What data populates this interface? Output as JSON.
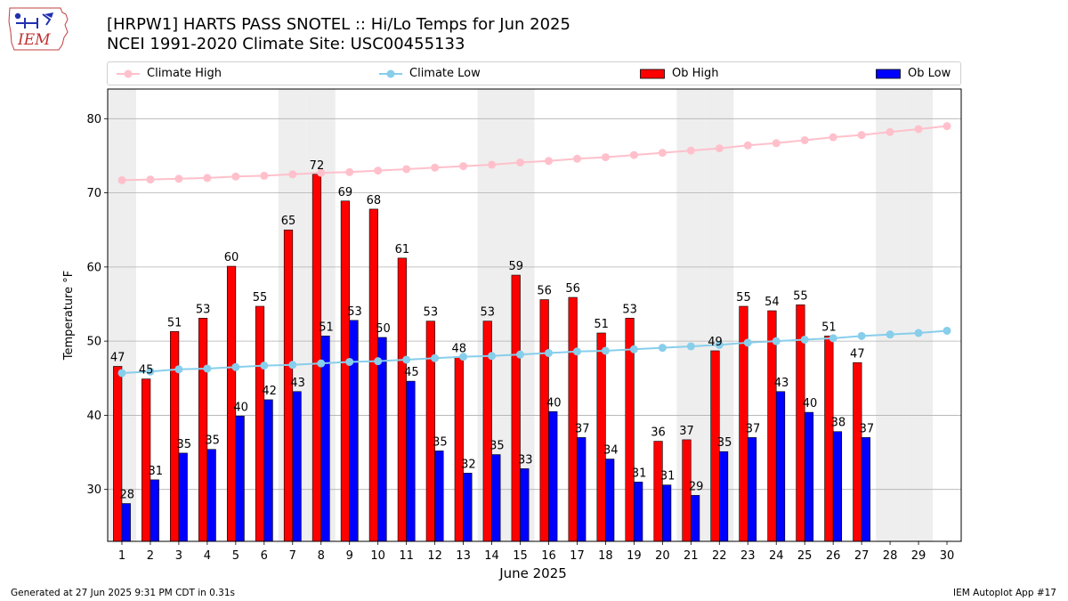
{
  "header": {
    "title_line1": "[HRPW1] HARTS PASS SNOTEL :: Hi/Lo Temps for Jun 2025",
    "title_line2": "NCEI 1991-2020 Climate Site: USC00455133"
  },
  "logo": {
    "text": "IEM",
    "icon": "iowa-state-map-weather-icon"
  },
  "footer": {
    "left": "Generated at 27 Jun 2025 9:31 PM CDT in 0.31s",
    "right": "IEM Autoplot App #17"
  },
  "colors": {
    "ob_high": "#ff0000",
    "ob_low": "#0000ff",
    "climate_high": "#ffc0cb",
    "climate_low": "#87ceeb",
    "weekend_shade": "#eeeeee",
    "grid": "#b0b0b0"
  },
  "chart_data": {
    "type": "bar",
    "title": "[HRPW1] HARTS PASS SNOTEL :: Hi/Lo Temps for Jun 2025",
    "subtitle": "NCEI 1991-2020 Climate Site: USC00455133",
    "xlabel": "June 2025",
    "ylabel": "Temperature °F",
    "ylim": [
      23,
      84
    ],
    "yticks": [
      30,
      40,
      50,
      60,
      70,
      80
    ],
    "x": [
      1,
      2,
      3,
      4,
      5,
      6,
      7,
      8,
      9,
      10,
      11,
      12,
      13,
      14,
      15,
      16,
      17,
      18,
      19,
      20,
      21,
      22,
      23,
      24,
      25,
      26,
      27,
      28,
      29,
      30
    ],
    "grid": "horizontal",
    "legend_position": "top",
    "shaded_days": [
      1,
      7,
      8,
      14,
      15,
      21,
      22,
      28,
      29
    ],
    "series": [
      {
        "name": "Climate High",
        "type": "line",
        "color": "#ffc0cb",
        "values": [
          71.7,
          71.8,
          71.9,
          72.0,
          72.2,
          72.3,
          72.5,
          72.7,
          72.8,
          73.0,
          73.2,
          73.4,
          73.6,
          73.8,
          74.1,
          74.3,
          74.6,
          74.8,
          75.1,
          75.4,
          75.7,
          76.0,
          76.4,
          76.7,
          77.1,
          77.5,
          77.8,
          78.2,
          78.6,
          79.0
        ]
      },
      {
        "name": "Climate Low",
        "type": "line",
        "color": "#87ceeb",
        "values": [
          45.7,
          45.9,
          46.2,
          46.3,
          46.5,
          46.7,
          46.8,
          47.0,
          47.2,
          47.3,
          47.5,
          47.7,
          47.9,
          48.0,
          48.2,
          48.4,
          48.6,
          48.7,
          48.9,
          49.1,
          49.3,
          49.5,
          49.8,
          50.0,
          50.2,
          50.4,
          50.7,
          50.9,
          51.1,
          51.4
        ]
      },
      {
        "name": "Ob High",
        "type": "bar",
        "color": "#ff0000",
        "values": [
          46.6,
          44.9,
          51.3,
          53.1,
          60.1,
          54.7,
          65.0,
          72.5,
          68.9,
          67.8,
          61.2,
          52.7,
          47.8,
          52.7,
          58.9,
          55.6,
          55.9,
          51.1,
          53.1,
          36.5,
          36.7,
          48.7,
          54.7,
          54.1,
          54.9,
          50.7,
          47.1,
          null,
          null,
          null
        ],
        "labels": [
          "47",
          "45",
          "51",
          "53",
          "60",
          "55",
          "65",
          "72",
          "69",
          "68",
          "61",
          "53",
          "48",
          "53",
          "59",
          "56",
          "56",
          "51",
          "53",
          "36",
          "37",
          "49",
          "55",
          "54",
          "55",
          "51",
          "47",
          "",
          "",
          ""
        ]
      },
      {
        "name": "Ob Low",
        "type": "bar",
        "color": "#0000ff",
        "values": [
          28.1,
          31.3,
          34.9,
          35.4,
          39.9,
          42.1,
          43.2,
          50.7,
          52.8,
          50.5,
          44.6,
          35.2,
          32.2,
          34.7,
          32.8,
          40.5,
          37.0,
          34.1,
          31.0,
          30.6,
          29.2,
          35.1,
          37.0,
          43.2,
          40.4,
          37.8,
          37.0,
          null,
          null,
          null
        ],
        "labels": [
          "28",
          "31",
          "35",
          "35",
          "40",
          "42",
          "43",
          "51",
          "53",
          "50",
          "45",
          "35",
          "32",
          "35",
          "33",
          "40",
          "37",
          "34",
          "31",
          "31",
          "29",
          "35",
          "37",
          "43",
          "40",
          "38",
          "37",
          "",
          "",
          ""
        ]
      }
    ]
  }
}
